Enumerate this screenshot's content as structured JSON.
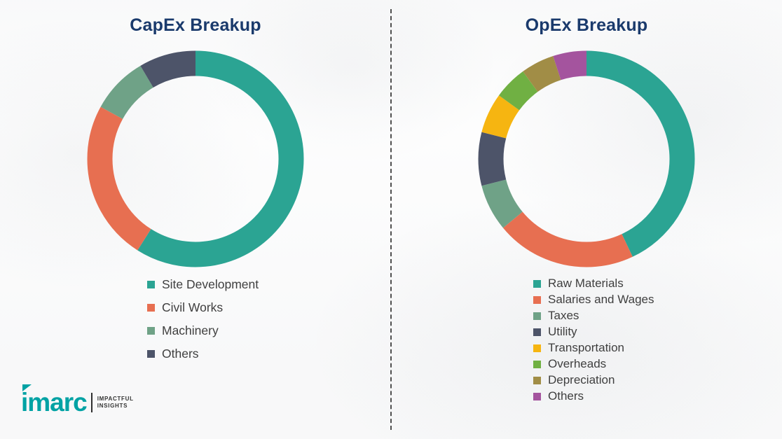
{
  "page_title": "CapEx and OpEx Breakup",
  "theme": {
    "title_color": "#1a3a6c",
    "legend_text_color": "#3f3f3f",
    "background": "#ffffff",
    "divider_color": "#4f4f4f"
  },
  "chart_data": [
    {
      "type": "pie",
      "variant": "donut",
      "title": "CapEx Breakup",
      "legend_position": "bottom",
      "unit": "%",
      "values_estimated": true,
      "segments": [
        {
          "label": "Site Development",
          "value": 59,
          "color": "#2ba493"
        },
        {
          "label": "Civil Works",
          "value": 24,
          "color": "#e76f51"
        },
        {
          "label": "Machinery",
          "value": 8.5,
          "color": "#6fa287"
        },
        {
          "label": "Others",
          "value": 8.5,
          "color": "#4d5469"
        }
      ]
    },
    {
      "type": "pie",
      "variant": "donut",
      "title": "OpEx Breakup",
      "legend_position": "bottom",
      "unit": "%",
      "values_estimated": true,
      "segments": [
        {
          "label": "Raw Materials",
          "value": 43,
          "color": "#2ba493"
        },
        {
          "label": "Salaries and Wages",
          "value": 21,
          "color": "#e76f51"
        },
        {
          "label": "Taxes",
          "value": 7,
          "color": "#6fa287"
        },
        {
          "label": "Utility",
          "value": 8,
          "color": "#4d5469"
        },
        {
          "label": "Transportation",
          "value": 6,
          "color": "#f6b511"
        },
        {
          "label": "Overheads",
          "value": 5,
          "color": "#70b043"
        },
        {
          "label": "Depreciation",
          "value": 5,
          "color": "#a18d46"
        },
        {
          "label": "Others",
          "value": 5,
          "color": "#a4549e"
        }
      ]
    }
  ],
  "logo": {
    "brand": "imarc",
    "tagline_line1": "IMPACTFUL",
    "tagline_line2": "INSIGHTS",
    "brand_color": "#00a2a4"
  }
}
